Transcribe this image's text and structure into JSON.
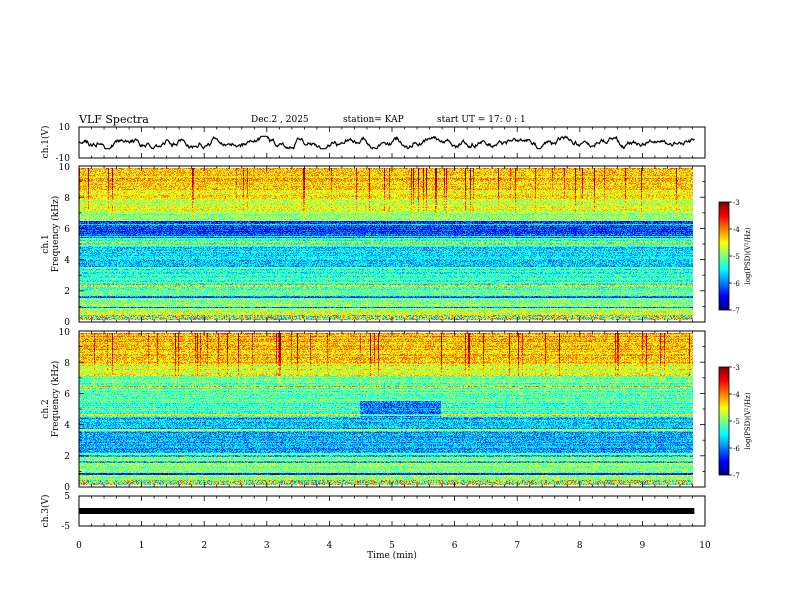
{
  "header": {
    "title": "VLF Spectra",
    "date": "Dec.2 , 2025",
    "station": "station= KAP",
    "start": "start  UT =   17: 0  : 1"
  },
  "chart_data": [
    {
      "id": "ch1-waveform",
      "type": "line",
      "ylabel": "ch.1(V)",
      "ylim": [
        -10,
        10
      ],
      "y_tick_labels": [
        "10",
        "-10"
      ],
      "x_range_min": [
        0,
        9.83
      ],
      "amplitude_range": [
        -4,
        4
      ],
      "line_color": "#000000"
    },
    {
      "id": "ch1-spectrogram",
      "type": "heatmap",
      "ylabel_1": "ch.1",
      "ylabel_2": "Frequency (kHz)",
      "ylim": [
        0,
        10
      ],
      "y_ticks": [
        0,
        2,
        4,
        6,
        8,
        10
      ],
      "y_tick_labels": [
        "0",
        "2",
        "4",
        "6",
        "8",
        "10"
      ],
      "xlim": [
        0,
        10
      ],
      "data_x_max": 9.83,
      "colorbar": {
        "label": "log(PSD)(V²/Hz)",
        "range": [
          -7,
          -3
        ],
        "ticks": [
          -3,
          -4,
          -5,
          -6,
          -7
        ],
        "tick_labels": [
          "-3",
          "-4",
          "-5",
          "-6",
          "-7"
        ]
      }
    },
    {
      "id": "ch2-spectrogram",
      "type": "heatmap",
      "ylabel_1": "ch.2",
      "ylabel_2": "Frequency (kHz)",
      "ylim": [
        0,
        10
      ],
      "y_ticks": [
        0,
        2,
        4,
        6,
        8,
        10
      ],
      "y_tick_labels": [
        "0",
        "2",
        "4",
        "6",
        "8",
        "10"
      ],
      "xlim": [
        0,
        10
      ],
      "data_x_max": 9.83,
      "colorbar": {
        "label": "log(PSD)(V²/Hz)",
        "range": [
          -7,
          -3
        ],
        "ticks": [
          -3,
          -4,
          -5,
          -6,
          -7
        ],
        "tick_labels": [
          "-3",
          "-4",
          "-5",
          "-6",
          "-7"
        ]
      }
    },
    {
      "id": "ch3-signal",
      "type": "line",
      "ylabel": "ch.3(V)",
      "ylim": [
        -5,
        5
      ],
      "y_tick_labels": [
        "5",
        "-5"
      ],
      "level_v": 0,
      "x_range_min": [
        0,
        9.83
      ],
      "line_color": "#000000"
    }
  ],
  "x_axis": {
    "label": "Time (min)",
    "ticks": [
      0,
      1,
      2,
      3,
      4,
      5,
      6,
      7,
      8,
      9,
      10
    ],
    "tick_labels": [
      "0",
      "1",
      "2",
      "3",
      "4",
      "5",
      "6",
      "7",
      "8",
      "9",
      "10"
    ]
  }
}
